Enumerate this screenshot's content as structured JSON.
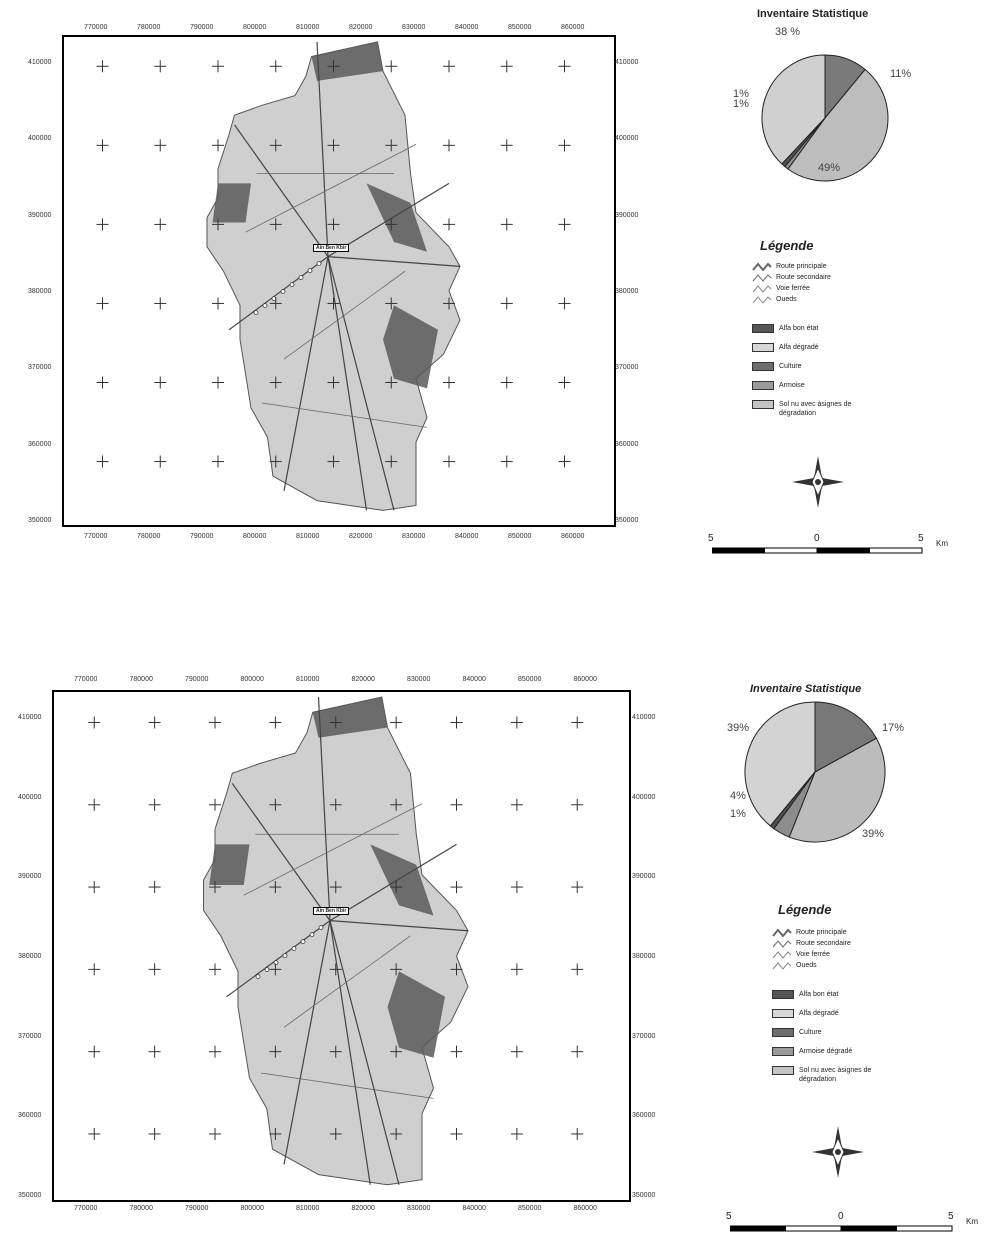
{
  "maps": [
    {
      "id": "top",
      "x_ticks_top": [
        "770000",
        "780000",
        "790000",
        "800000",
        "810000",
        "820000",
        "830000",
        "840000",
        "850000",
        "860000"
      ],
      "x_ticks_bottom": [
        "770000",
        "780000",
        "790000",
        "800000",
        "810000",
        "820000",
        "830000",
        "840000",
        "850000",
        "860000"
      ],
      "y_ticks_left": [
        "410000",
        "400000",
        "390000",
        "380000",
        "370000",
        "360000",
        "350000"
      ],
      "y_ticks_right": [
        "410000",
        "400000",
        "390000",
        "380000",
        "370000",
        "360000",
        "350000"
      ],
      "town": "Ain Ben Kbir",
      "stat_title": "Inventaire Statistique",
      "pie": [
        {
          "label": "38 %",
          "value": 38,
          "color": "#d0d0d0"
        },
        {
          "label": "11%",
          "value": 11,
          "color": "#7a7a7a"
        },
        {
          "label": "49%",
          "value": 49,
          "color": "#bdbdbd"
        },
        {
          "label": "1%",
          "value": 1,
          "color": "#8e8e8e"
        },
        {
          "label": "1%",
          "value": 1,
          "color": "#505050"
        }
      ],
      "legend_title": "Légende",
      "legend_lines": [
        "Route principale",
        "Route secondaire",
        "Voie ferrée",
        "Oueds"
      ],
      "legend_areas": [
        {
          "label": "Alfa bon état",
          "color": "#555555"
        },
        {
          "label": "Alfa dégradé",
          "color": "#d6d6d6"
        },
        {
          "label": "Culture",
          "color": "#6e6e6e"
        },
        {
          "label": "Armoise",
          "color": "#9a9a9a"
        },
        {
          "label": "Sol nu avec àsignes de dégradation",
          "color": "#c4c4c4"
        }
      ],
      "scale": {
        "left": "5",
        "mid": "0",
        "right": "5",
        "unit": "Km"
      }
    },
    {
      "id": "bottom",
      "x_ticks_top": [
        "770000",
        "780000",
        "790000",
        "800000",
        "810000",
        "820000",
        "830000",
        "840000",
        "850000",
        "860000"
      ],
      "x_ticks_bottom": [
        "770000",
        "780000",
        "790000",
        "800000",
        "810000",
        "820000",
        "830000",
        "840000",
        "850000",
        "860000"
      ],
      "y_ticks_left": [
        "410000",
        "400000",
        "390000",
        "380000",
        "370000",
        "360000",
        "350000"
      ],
      "y_ticks_right": [
        "410000",
        "400000",
        "390000",
        "380000",
        "370000",
        "360000",
        "350000"
      ],
      "town": "Ain Ben Kbir",
      "stat_title": "Inventaire  Statistique",
      "pie": [
        {
          "label": "39%",
          "value": 39,
          "color": "#d3d3d3"
        },
        {
          "label": "17%",
          "value": 17,
          "color": "#787878"
        },
        {
          "label": "39%",
          "value": 39,
          "color": "#bcbcbc"
        },
        {
          "label": "4%",
          "value": 4,
          "color": "#8c8c8c"
        },
        {
          "label": "1%",
          "value": 1,
          "color": "#4e4e4e"
        }
      ],
      "legend_title": "Légende",
      "legend_lines": [
        "Route principale",
        "Route secondaire",
        "Voie ferrée",
        "Oueds"
      ],
      "legend_areas": [
        {
          "label": "Alfa bon état",
          "color": "#555555"
        },
        {
          "label": "Alfa dégradé",
          "color": "#d6d6d6"
        },
        {
          "label": "Culture",
          "color": "#6e6e6e"
        },
        {
          "label": "Armoise dégradé",
          "color": "#9a9a9a"
        },
        {
          "label": "Sol nu avec àsignes de dégradation",
          "color": "#c4c4c4"
        }
      ],
      "scale": {
        "left": "5",
        "mid": "0",
        "right": "5",
        "unit": "Km"
      }
    }
  ]
}
